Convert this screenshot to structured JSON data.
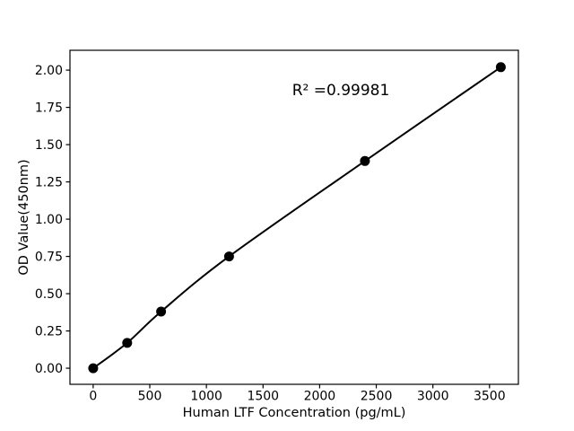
{
  "chart_data": {
    "type": "scatter",
    "fit_line": true,
    "title": "",
    "xlabel": "Human LTF Concentration (pg/mL)",
    "ylabel": "OD Value(450nm)",
    "annotation": "R² =0.99981",
    "x": [
      0,
      300,
      600,
      1200,
      2400,
      3600
    ],
    "y": [
      0.0,
      0.17,
      0.38,
      0.75,
      1.39,
      2.02
    ],
    "x_ticks": [
      0,
      500,
      1000,
      1500,
      2000,
      2500,
      3000,
      3500
    ],
    "y_ticks": [
      0,
      0.25,
      0.5,
      0.75,
      1.0,
      1.25,
      1.5,
      1.75,
      2.0
    ],
    "y_tick_labels": [
      "0.00",
      "0.25",
      "0.50",
      "0.75",
      "1.00",
      "1.25",
      "1.50",
      "1.75",
      "2.00"
    ],
    "xlim": [
      -205,
      3755
    ],
    "ylim": [
      -0.108,
      2.133
    ],
    "grid": false,
    "legend": false,
    "background_color": "#ffffff",
    "line_color": "#000000",
    "marker_color": "#000000",
    "axis_color": "#000000"
  }
}
